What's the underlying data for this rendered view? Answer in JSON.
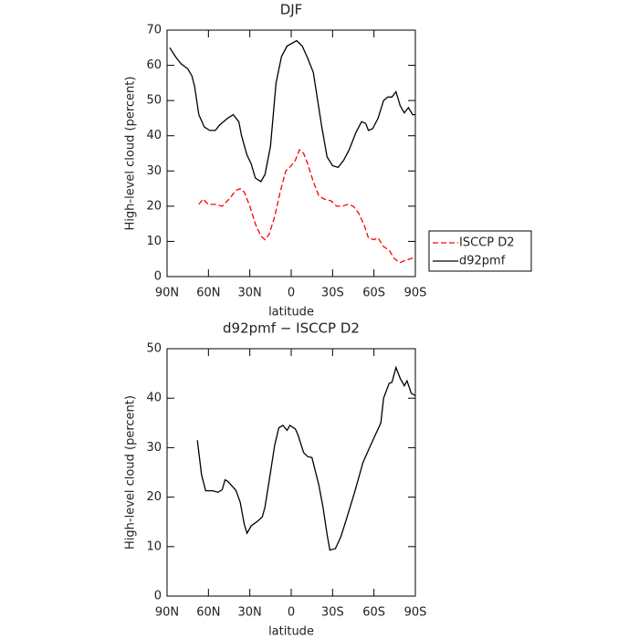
{
  "chart_data": [
    {
      "type": "line",
      "title": "DJF",
      "xlabel": "latitude",
      "ylabel": "High-level cloud (percent)",
      "xlim": [
        90,
        -90
      ],
      "xticks": [
        {
          "value": 90,
          "label": "90N"
        },
        {
          "value": 60,
          "label": "60N"
        },
        {
          "value": 30,
          "label": "30N"
        },
        0,
        {
          "value": -30,
          "label": "30S"
        },
        {
          "value": -60,
          "label": "60S"
        },
        {
          "value": -90,
          "label": "90S"
        }
      ],
      "ylim": [
        0,
        70
      ],
      "yticks": [
        0,
        10,
        20,
        30,
        40,
        50,
        60,
        70
      ],
      "legend": "outside-right",
      "series": [
        {
          "name": "ISCCP D2",
          "color": "#ff0000",
          "linestyle": "dashed",
          "x": [
            67,
            64,
            60,
            55,
            50,
            45,
            40,
            37,
            34,
            30,
            26,
            22,
            19,
            16,
            12,
            8,
            4,
            0,
            -3,
            -6,
            -9,
            -12,
            -16,
            -20,
            -24,
            -29,
            -33,
            -37,
            -41,
            -45,
            -49,
            -53,
            -56,
            -60,
            -63,
            -67,
            -71,
            -75,
            -79,
            -82,
            -86,
            -90
          ],
          "values": [
            20.5,
            22,
            20.5,
            20.5,
            20,
            22,
            24.5,
            25,
            24,
            20,
            15,
            11.5,
            10.5,
            12,
            17,
            24,
            30,
            31.5,
            33,
            36,
            35,
            32,
            27,
            23,
            22,
            21.5,
            20,
            20,
            20.5,
            20,
            18,
            14.5,
            11,
            10.5,
            11,
            8.5,
            7.5,
            5,
            4,
            4.5,
            5,
            5.5
          ]
        },
        {
          "name": "d92pmf",
          "color": "#000000",
          "linestyle": "solid",
          "x": [
            88,
            84,
            80,
            75,
            72,
            70,
            67,
            63,
            59,
            55,
            52,
            46,
            42,
            38,
            36,
            32,
            29,
            26,
            22,
            19,
            15,
            11,
            7,
            3,
            -4,
            -8,
            -12,
            -16,
            -22,
            -26,
            -30,
            -34,
            -38,
            -42,
            -47,
            -51,
            -54,
            -56,
            -59,
            -63,
            -67,
            -70,
            -73,
            -76,
            -79,
            -82,
            -85,
            -88,
            -90
          ],
          "values": [
            65,
            62.5,
            60.5,
            59,
            57,
            54,
            46,
            42.5,
            41.5,
            41.5,
            43,
            45,
            46,
            44,
            40,
            34.5,
            32,
            28,
            27,
            29,
            37,
            55,
            62.5,
            65.5,
            67,
            65.5,
            62,
            58,
            43,
            34,
            31.5,
            31,
            33,
            36,
            41,
            44,
            43.5,
            41.5,
            42,
            45,
            50,
            51,
            51,
            52.5,
            48.5,
            46.5,
            48,
            46,
            46
          ]
        }
      ]
    },
    {
      "type": "line",
      "title": "d92pmf − ISCCP D2",
      "xlabel": "latitude",
      "ylabel": "High-level cloud (percent)",
      "xlim": [
        90,
        -90
      ],
      "xticks": [
        {
          "value": 90,
          "label": "90N"
        },
        {
          "value": 60,
          "label": "60N"
        },
        {
          "value": 30,
          "label": "30N"
        },
        0,
        {
          "value": -30,
          "label": "30S"
        },
        {
          "value": -60,
          "label": "60S"
        },
        {
          "value": -90,
          "label": "90S"
        }
      ],
      "ylim": [
        0,
        50
      ],
      "yticks": [
        0,
        10,
        20,
        30,
        40,
        50
      ],
      "series": [
        {
          "color": "#000000",
          "linestyle": "solid",
          "x": [
            68,
            65,
            62,
            57,
            53,
            50,
            48,
            46,
            42,
            40,
            37,
            34,
            32,
            29,
            25,
            21,
            19,
            15,
            12,
            9,
            6,
            3,
            1,
            -3,
            -5,
            -9,
            -12,
            -15,
            -20,
            -23,
            -26,
            -28,
            -32,
            -36,
            -40,
            -46,
            -52,
            -56,
            -60,
            -65,
            -67,
            -71,
            -73,
            -76,
            -79,
            -82,
            -84,
            -87,
            -90
          ],
          "values": [
            31.5,
            24.5,
            21.3,
            21.3,
            21,
            21.5,
            23.5,
            23.2,
            22,
            21.3,
            19,
            14.5,
            12.7,
            14.2,
            15,
            16,
            18,
            25,
            30.5,
            34,
            34.5,
            33.5,
            34.5,
            33.8,
            32.5,
            29,
            28.2,
            28,
            22.5,
            18,
            12.5,
            9.3,
            9.6,
            12,
            15.5,
            21,
            27,
            29.5,
            32,
            35,
            40,
            43,
            43.2,
            46.2,
            44,
            42.5,
            43.5,
            41,
            40.5
          ]
        }
      ]
    }
  ]
}
